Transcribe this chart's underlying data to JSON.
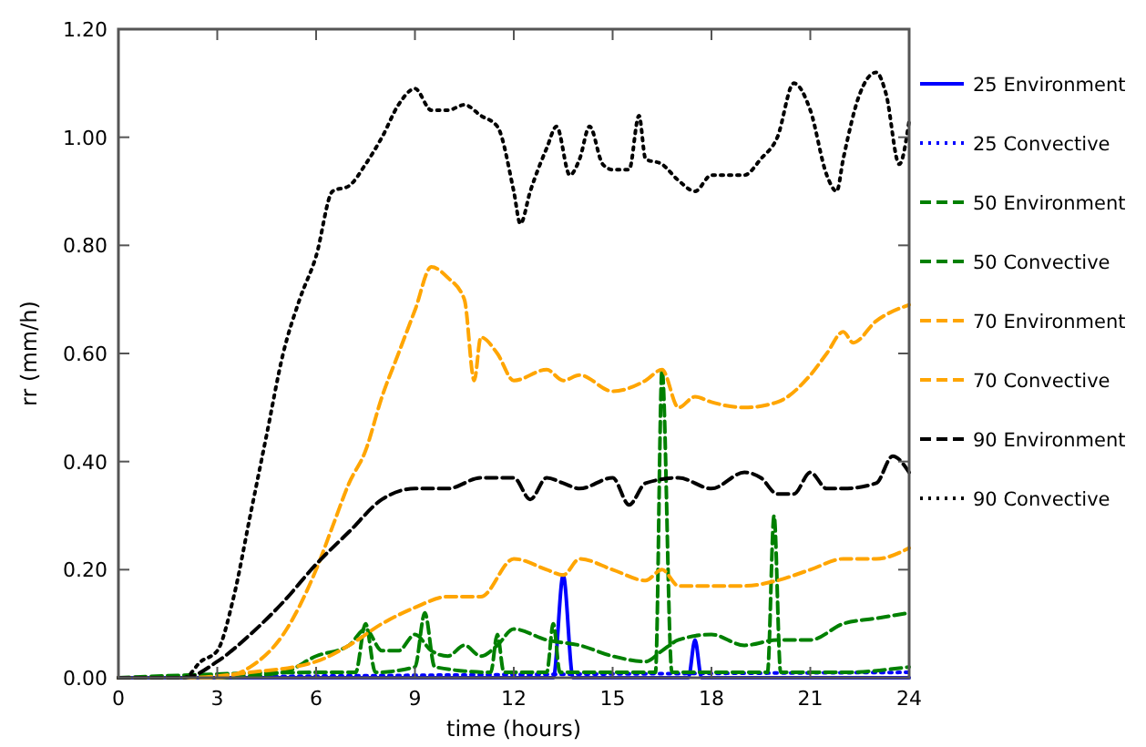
{
  "chart_data": {
    "type": "line",
    "xlabel": "time (hours)",
    "ylabel": "rr (mm/h)",
    "xlim": [
      0,
      24
    ],
    "ylim": [
      0,
      1.2
    ],
    "xticks": [
      0,
      3,
      6,
      9,
      12,
      15,
      18,
      21,
      24
    ],
    "yticks": [
      {
        "value": 0,
        "label": "0.00"
      },
      {
        "value": 0.2,
        "label": "0.20"
      },
      {
        "value": 0.4,
        "label": "0.40"
      },
      {
        "value": 0.6,
        "label": "0.60"
      },
      {
        "value": 0.8,
        "label": "0.80"
      },
      {
        "value": 1,
        "label": "1.00"
      },
      {
        "value": 1.2,
        "label": "1.20"
      }
    ],
    "grid": false,
    "legend": "right",
    "series": [
      {
        "name": "25 Environment",
        "color": "#0000ff",
        "line_style": "solid",
        "x": [
          0,
          13.2,
          13.5,
          13.8,
          17.3,
          17.5,
          17.7,
          24
        ],
        "values": [
          0,
          0,
          0.19,
          0,
          0,
          0.07,
          0,
          0
        ]
      },
      {
        "name": "25 Convective",
        "color": "#0000ff",
        "line_style": "dotted",
        "x": [
          0,
          10,
          24
        ],
        "values": [
          0,
          0.005,
          0.01
        ]
      },
      {
        "name": "50 Environment",
        "color": "#008000",
        "line_style": "dashed",
        "x": [
          0,
          6,
          7.2,
          7.5,
          7.8,
          9,
          9.3,
          9.6,
          11.3,
          11.5,
          11.7,
          13,
          13.2,
          13.4,
          16.3,
          16.5,
          16.8,
          19.7,
          19.9,
          20.1,
          22,
          24
        ],
        "values": [
          0,
          0.01,
          0.01,
          0.1,
          0.01,
          0.02,
          0.12,
          0.02,
          0.01,
          0.08,
          0.01,
          0.01,
          0.1,
          0.01,
          0.01,
          0.57,
          0.01,
          0.01,
          0.3,
          0.01,
          0.01,
          0.02
        ]
      },
      {
        "name": "50 Convective",
        "color": "#008000",
        "line_style": "dashed",
        "x": [
          0,
          3,
          5,
          6,
          7,
          7.5,
          8,
          8.5,
          9,
          9.5,
          10,
          10.5,
          11,
          11.5,
          12,
          13,
          14,
          15,
          16,
          16.5,
          17,
          18,
          19,
          20,
          21,
          22,
          23,
          24
        ],
        "values": [
          0,
          0,
          0.01,
          0.04,
          0.06,
          0.09,
          0.05,
          0.05,
          0.08,
          0.05,
          0.04,
          0.06,
          0.04,
          0.06,
          0.09,
          0.07,
          0.06,
          0.04,
          0.03,
          0.05,
          0.07,
          0.08,
          0.06,
          0.07,
          0.07,
          0.1,
          0.11,
          0.12
        ]
      },
      {
        "name": "70 Environment",
        "color": "#ffa500",
        "line_style": "dashed",
        "x": [
          0,
          3,
          4,
          5,
          6,
          6.5,
          7,
          7.5,
          8,
          8.5,
          9,
          9.5,
          10,
          10.5,
          10.8,
          11,
          11.5,
          12,
          13,
          13.5,
          14,
          15,
          16,
          16.5,
          17,
          17.5,
          18,
          19,
          20,
          21,
          21.5,
          22,
          22.3,
          23,
          24
        ],
        "values": [
          0,
          0,
          0.02,
          0.08,
          0.2,
          0.28,
          0.36,
          0.42,
          0.52,
          0.6,
          0.68,
          0.76,
          0.74,
          0.7,
          0.55,
          0.63,
          0.6,
          0.55,
          0.57,
          0.55,
          0.56,
          0.53,
          0.55,
          0.57,
          0.5,
          0.52,
          0.51,
          0.5,
          0.51,
          0.56,
          0.6,
          0.64,
          0.62,
          0.66,
          0.69
        ]
      },
      {
        "name": "70 Convective",
        "color": "#ffa500",
        "line_style": "dashed",
        "x": [
          0,
          2,
          4,
          6,
          7,
          8,
          9,
          10,
          11,
          12,
          13,
          13.5,
          14,
          15,
          16,
          16.5,
          17,
          18,
          19,
          20,
          21,
          22,
          23,
          24
        ],
        "values": [
          0,
          0,
          0.01,
          0.03,
          0.06,
          0.1,
          0.13,
          0.15,
          0.15,
          0.22,
          0.2,
          0.19,
          0.22,
          0.2,
          0.18,
          0.2,
          0.17,
          0.17,
          0.17,
          0.18,
          0.2,
          0.22,
          0.22,
          0.24
        ]
      },
      {
        "name": "90 Environment",
        "color": "#000000",
        "line_style": "dashed",
        "x": [
          0,
          2,
          3,
          4,
          5,
          6,
          7,
          8,
          9,
          10,
          11,
          12,
          12.5,
          13,
          13.5,
          14,
          15,
          15.5,
          16,
          17,
          18,
          19,
          19.5,
          20,
          20.5,
          21,
          21.5,
          22,
          23,
          23.5,
          24
        ],
        "values": [
          0,
          0,
          0.03,
          0.08,
          0.14,
          0.21,
          0.27,
          0.33,
          0.35,
          0.35,
          0.37,
          0.37,
          0.33,
          0.37,
          0.36,
          0.35,
          0.37,
          0.32,
          0.36,
          0.37,
          0.35,
          0.38,
          0.37,
          0.34,
          0.34,
          0.38,
          0.35,
          0.35,
          0.36,
          0.41,
          0.38
        ]
      },
      {
        "name": "90 Convective",
        "color": "#000000",
        "line_style": "dotted",
        "x": [
          0,
          2,
          2.5,
          3,
          3.5,
          4,
          4.5,
          5,
          5.5,
          6,
          6.5,
          7,
          7.5,
          8,
          8.5,
          9,
          9.5,
          10,
          10.5,
          11,
          11.5,
          12,
          12.2,
          12.5,
          13,
          13.3,
          13.7,
          14,
          14.3,
          14.7,
          15,
          15.5,
          15.8,
          16,
          16.5,
          17,
          17.5,
          18,
          19,
          19.5,
          20,
          20.5,
          21,
          21.5,
          21.8,
          22,
          22.5,
          23,
          23.3,
          23.7,
          24
        ],
        "values": [
          0,
          0,
          0.03,
          0.05,
          0.15,
          0.3,
          0.45,
          0.6,
          0.7,
          0.78,
          0.9,
          0.91,
          0.95,
          1,
          1.06,
          1.09,
          1.05,
          1.05,
          1.06,
          1.04,
          1.02,
          0.9,
          0.84,
          0.9,
          0.98,
          1.02,
          0.93,
          0.96,
          1.02,
          0.95,
          0.94,
          0.94,
          1.04,
          0.96,
          0.95,
          0.92,
          0.9,
          0.93,
          0.93,
          0.96,
          1,
          1.1,
          1.05,
          0.93,
          0.9,
          0.96,
          1.08,
          1.12,
          1.08,
          0.95,
          1.03
        ]
      }
    ]
  }
}
